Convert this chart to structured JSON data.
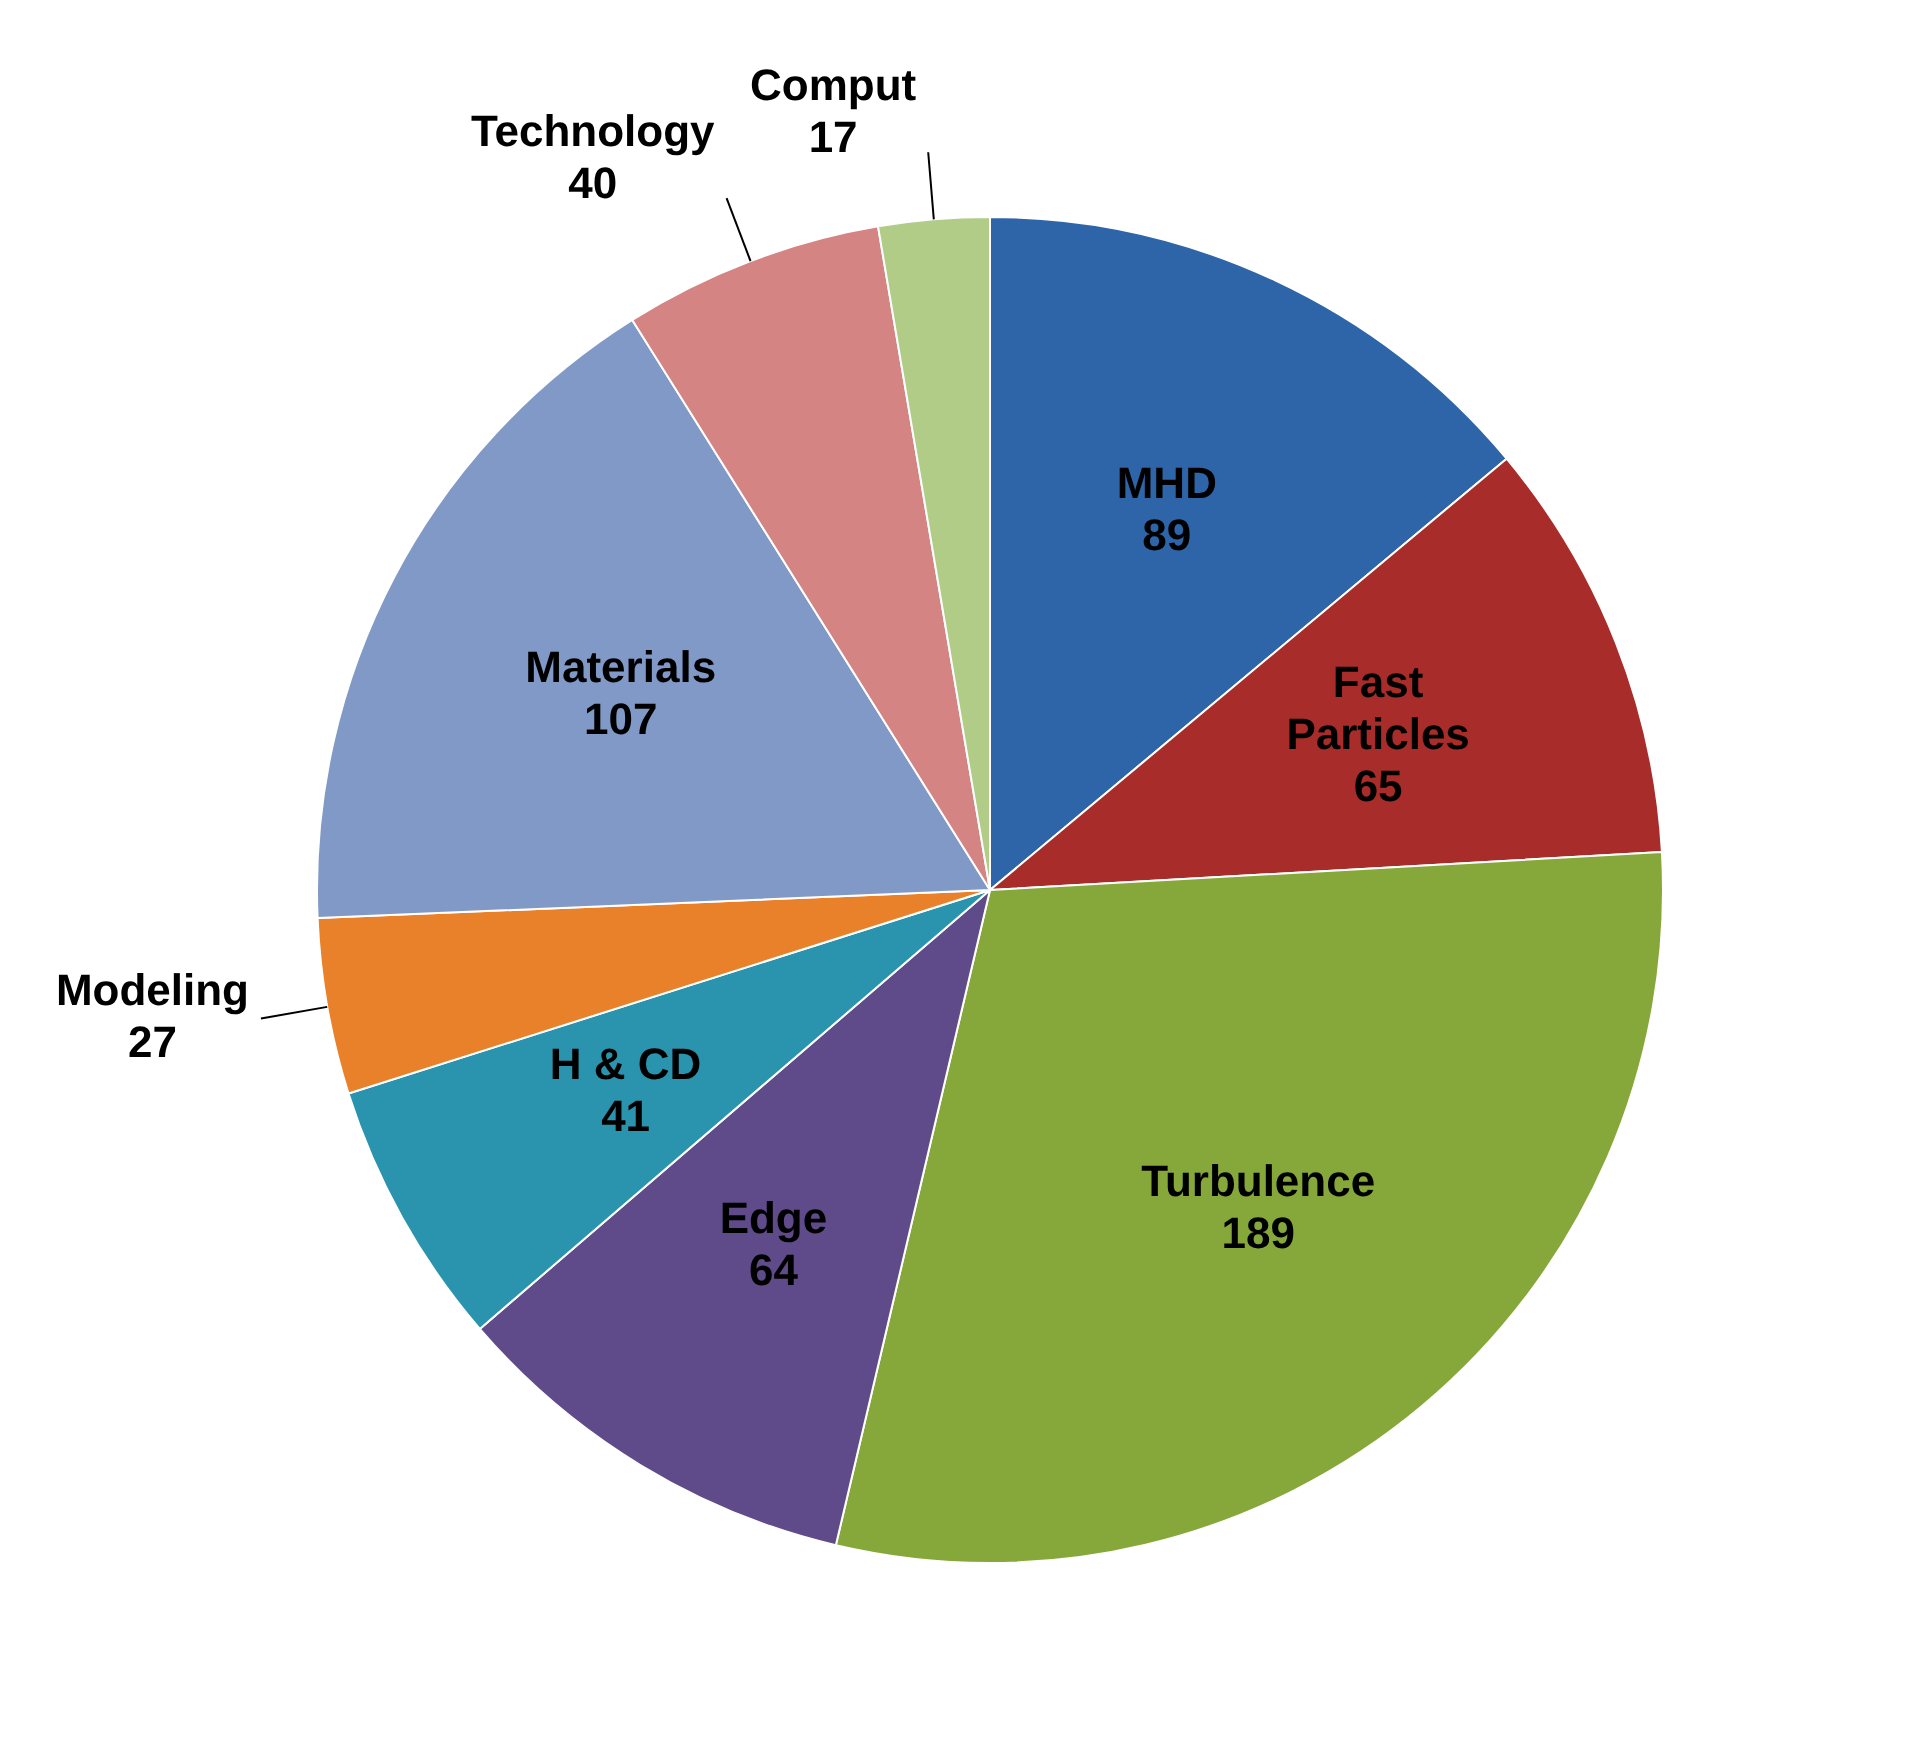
{
  "chart_data": {
    "type": "pie",
    "categories": [
      "MHD",
      "Fast Particles",
      "Turbulence",
      "Edge",
      "H & CD",
      "Modeling",
      "Materials",
      "Technology",
      "Comput"
    ],
    "values": [
      89,
      65,
      189,
      64,
      41,
      27,
      107,
      40,
      17
    ],
    "colors": [
      "#2e64a8",
      "#a82c2a",
      "#86a83a",
      "#5f4a8a",
      "#2a93ad",
      "#e8812a",
      "#8099c6",
      "#d48482",
      "#b0cc86"
    ],
    "data_labels": true,
    "legend": false
  }
}
